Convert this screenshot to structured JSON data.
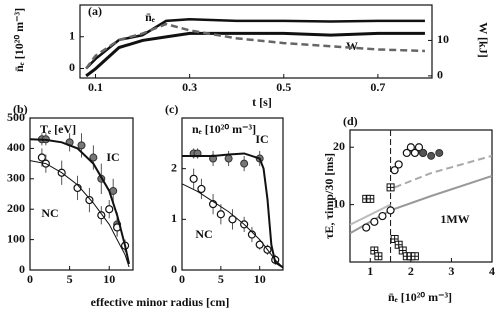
{
  "chart_data": [
    {
      "type": "line",
      "panel": "(a)",
      "xlabel": "t [s]",
      "ylabel": "n̄ₑ [10²⁰ m⁻³]",
      "y2label": "W [kJ]",
      "xlim": [
        0.067,
        0.815
      ],
      "ylim": [
        -0.3,
        2.0
      ],
      "y2lim": [
        -0.6,
        20
      ],
      "xticks": [
        0.1,
        0.3,
        0.5,
        0.7
      ],
      "yticks": [
        0,
        1
      ],
      "y2ticks": [
        0,
        10
      ],
      "series": [
        {
          "name": "n̄ₑ",
          "color": "#111111",
          "line": "solid",
          "width": 2.5,
          "marker": "none",
          "x": [
            0.08,
            0.1,
            0.15,
            0.2,
            0.25,
            0.3,
            0.4,
            0.5,
            0.6,
            0.7,
            0.8
          ],
          "values": [
            0,
            0.3,
            0.9,
            1.05,
            1.5,
            1.55,
            1.5,
            1.5,
            1.48,
            1.5,
            1.5
          ]
        },
        {
          "name": "W",
          "axis": "y2",
          "color": "#111111",
          "line": "solid",
          "width": 3,
          "marker": "none",
          "x": [
            0.08,
            0.1,
            0.15,
            0.2,
            0.25,
            0.3,
            0.4,
            0.5,
            0.6,
            0.7,
            0.8
          ],
          "values": [
            0,
            2,
            8,
            10,
            11,
            12,
            12,
            12,
            11.5,
            12,
            12
          ]
        },
        {
          "color": "#666666",
          "line": "dashed",
          "width": 2.5,
          "marker": "none",
          "x": [
            0.08,
            0.1,
            0.15,
            0.2,
            0.25,
            0.3,
            0.4,
            0.5,
            0.6,
            0.7,
            0.8
          ],
          "values": [
            0,
            0.4,
            0.9,
            1.1,
            1.4,
            1.2,
            0.95,
            0.8,
            0.7,
            0.6,
            0.55
          ]
        }
      ]
    },
    {
      "type": "scatter",
      "panel": "(b)",
      "title": "Tₑ [eV]",
      "xlabel": "effective minor radius [cm]",
      "xlim": [
        0,
        13
      ],
      "ylim": [
        0,
        500
      ],
      "xticks": [
        0,
        5,
        10
      ],
      "yticks": [
        0,
        100,
        200,
        300,
        400,
        500
      ],
      "series": [
        {
          "name": "IC",
          "color": "#777777",
          "marker": "filled-circle",
          "x": [
            1.5,
            2,
            5,
            6.5,
            8,
            9,
            10.5,
            11
          ],
          "values": [
            430,
            430,
            420,
            410,
            370,
            300,
            260,
            150
          ],
          "errors": [
            20,
            20,
            30,
            40,
            40,
            50,
            40,
            40
          ]
        },
        {
          "name": "NC",
          "color": "#111111",
          "marker": "open-circle",
          "x": [
            1.5,
            2,
            4,
            6,
            7.5,
            9,
            10,
            11,
            12
          ],
          "values": [
            370,
            350,
            320,
            270,
            230,
            180,
            200,
            140,
            80
          ],
          "errors": [
            30,
            30,
            40,
            40,
            40,
            30,
            30,
            30,
            20
          ]
        },
        {
          "color": "#111111",
          "line": "solid",
          "width": 2,
          "marker": "none",
          "x": [
            0,
            2,
            4,
            6,
            8,
            10,
            11,
            12,
            12.5
          ],
          "values": [
            430,
            428,
            420,
            400,
            350,
            260,
            180,
            80,
            20
          ]
        },
        {
          "color": "#111111",
          "line": "solid",
          "width": 1,
          "marker": "none",
          "x": [
            0,
            2,
            4,
            6,
            8,
            10,
            11,
            12,
            12.5
          ],
          "values": [
            360,
            350,
            320,
            280,
            220,
            150,
            100,
            50,
            10
          ]
        }
      ]
    },
    {
      "type": "scatter",
      "panel": "(c)",
      "title": "nₑ [10²⁰ m⁻³]",
      "xlim": [
        0,
        13
      ],
      "ylim": [
        0,
        3
      ],
      "xticks": [
        0,
        5,
        10
      ],
      "yticks": [
        0,
        1,
        2
      ],
      "series": [
        {
          "name": "IC",
          "color": "#777777",
          "marker": "filled-circle",
          "x": [
            1.5,
            2,
            4,
            6,
            8,
            10
          ],
          "values": [
            2.3,
            2.3,
            2.2,
            2.2,
            2.1,
            2.2
          ],
          "errors": [
            0.1,
            0.1,
            0.15,
            0.15,
            0.15,
            0.15
          ]
        },
        {
          "name": "NC",
          "color": "#111111",
          "marker": "open-circle",
          "x": [
            1.5,
            2.5,
            4,
            5,
            6.5,
            8,
            9,
            10,
            11,
            12
          ],
          "values": [
            1.8,
            1.6,
            1.3,
            1.1,
            1.0,
            0.9,
            0.7,
            0.5,
            0.4,
            0.2
          ],
          "errors": [
            0.2,
            0.2,
            0.2,
            0.2,
            0.2,
            0.15,
            0.15,
            0.1,
            0.1,
            0.1
          ]
        },
        {
          "color": "#111111",
          "line": "solid",
          "width": 2,
          "marker": "none",
          "x": [
            0,
            2,
            4,
            6,
            8,
            10,
            10.5,
            11,
            11.5,
            12,
            13
          ],
          "values": [
            2.25,
            2.25,
            2.25,
            2.28,
            2.3,
            2.2,
            2.0,
            1.4,
            0.5,
            0.15,
            0.05
          ]
        },
        {
          "color": "#111111",
          "line": "solid",
          "width": 1,
          "marker": "none",
          "x": [
            0,
            2,
            4,
            6,
            8,
            10,
            11,
            12,
            13
          ],
          "values": [
            1.7,
            1.55,
            1.35,
            1.15,
            0.9,
            0.6,
            0.4,
            0.2,
            0.05
          ]
        }
      ]
    },
    {
      "type": "scatter",
      "panel": "(d)",
      "xlabel": "n̄ₑ [10²⁰ m⁻³]",
      "ylabel": "τE, τimp/30 [ms]",
      "annotations": [
        "1MW"
      ],
      "vline": 1.5,
      "xlim": [
        0.5,
        4
      ],
      "ylim": [
        0,
        23
      ],
      "xticks": [
        1,
        2,
        3,
        4
      ],
      "yticks": [
        10,
        20
      ],
      "series": [
        {
          "color": "#999999",
          "line": "solid",
          "width": 2,
          "marker": "none",
          "x": [
            0.5,
            1.5,
            2.5,
            4
          ],
          "values": [
            5,
            9,
            11.5,
            15
          ]
        },
        {
          "color": "#bbbbbb",
          "line": "solid",
          "width": 2,
          "marker": "none",
          "x": [
            0.5,
            1.5
          ],
          "values": [
            6.5,
            10
          ]
        },
        {
          "color": "#aaaaaa",
          "line": "dashed",
          "width": 2,
          "marker": "none",
          "x": [
            1.6,
            2.5,
            3,
            4
          ],
          "values": [
            13,
            15.5,
            16.5,
            18.5
          ]
        },
        {
          "color": "#111111",
          "marker": "open-circle",
          "x": [
            0.9,
            1.1,
            1.3,
            1.5,
            1.6,
            1.7,
            1.9,
            2.0,
            2.1,
            2.2,
            2.3
          ],
          "values": [
            6,
            7,
            8,
            9,
            16,
            17,
            19,
            20,
            19,
            20,
            19
          ]
        },
        {
          "color": "#555555",
          "marker": "filled-circle",
          "x": [
            2.3,
            2.5,
            2.7
          ],
          "values": [
            19,
            18.5,
            19
          ]
        },
        {
          "color": "#111111",
          "marker": "crossed-square",
          "x": [
            0.9,
            1.0,
            1.1,
            1.2,
            1.5,
            1.6,
            1.7,
            1.8,
            1.9,
            2.0,
            2.1
          ],
          "values": [
            11,
            11,
            2,
            1,
            13,
            4,
            3,
            2,
            1,
            1,
            1
          ]
        }
      ]
    }
  ]
}
